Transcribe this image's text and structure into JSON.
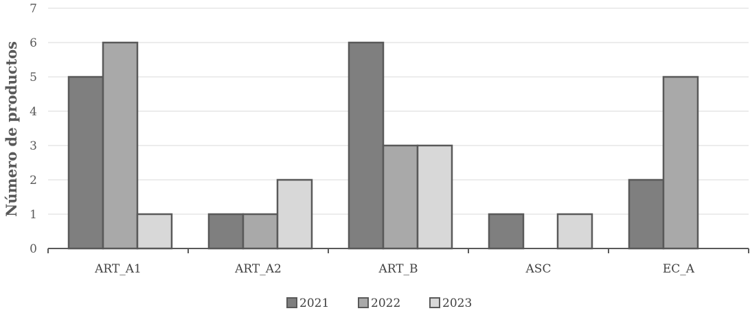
{
  "chart_data": {
    "type": "bar",
    "ylabel": "Número de productos",
    "xlabel": "",
    "ylim": [
      0,
      7
    ],
    "yticks": [
      0,
      1,
      2,
      3,
      4,
      5,
      6,
      7
    ],
    "grid": true,
    "legend_position": "bottom",
    "categories": [
      "ART_A1",
      "ART_A2",
      "ART_B",
      "ASC",
      "EC_A"
    ],
    "series": [
      {
        "name": "2021",
        "color": "#7f7f7f",
        "values": [
          5,
          1,
          6,
          1,
          2
        ]
      },
      {
        "name": "2022",
        "color": "#a9a9a9",
        "values": [
          6,
          1,
          3,
          0,
          5
        ]
      },
      {
        "name": "2023",
        "color": "#d8d8d8",
        "values": [
          1,
          2,
          3,
          1,
          0
        ]
      }
    ]
  }
}
